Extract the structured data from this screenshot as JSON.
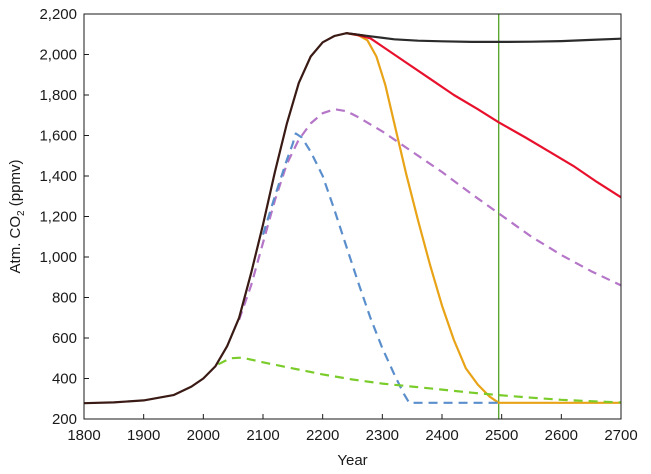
{
  "chart_data": {
    "type": "line",
    "title": "",
    "xlabel": "Year",
    "ylabel": {
      "pre": "Atm. CO",
      "sub": "2",
      "post": " (ppmv)"
    },
    "xlim": [
      1800,
      2700
    ],
    "ylim": [
      200,
      2200
    ],
    "xticks": [
      1800,
      1900,
      2000,
      2100,
      2200,
      2300,
      2400,
      2500,
      2600,
      2700
    ],
    "yticks": [
      200,
      400,
      600,
      800,
      1000,
      1200,
      1400,
      1600,
      1800,
      2000,
      2200
    ],
    "xtick_labels": [
      "1800",
      "1900",
      "2000",
      "2100",
      "2200",
      "2300",
      "2400",
      "2500",
      "2600",
      "2700"
    ],
    "ytick_labels": [
      "200",
      "400",
      "600",
      "800",
      "1,000",
      "1,200",
      "1,400",
      "1,600",
      "1,800",
      "2,000",
      "2,200"
    ],
    "grid": false,
    "vline": {
      "x": 2495,
      "color": "#5aa832"
    },
    "series": [
      {
        "color": "#e8a317",
        "dash": false,
        "points": [
          [
            2240,
            2105
          ],
          [
            2260,
            2095
          ],
          [
            2275,
            2070
          ],
          [
            2290,
            1990
          ],
          [
            2305,
            1850
          ],
          [
            2320,
            1660
          ],
          [
            2340,
            1410
          ],
          [
            2360,
            1180
          ],
          [
            2380,
            960
          ],
          [
            2400,
            760
          ],
          [
            2420,
            590
          ],
          [
            2440,
            450
          ],
          [
            2460,
            370
          ],
          [
            2480,
            310
          ],
          [
            2495,
            280
          ],
          [
            2700,
            280
          ]
        ]
      },
      {
        "color": "#e8112d",
        "dash": false,
        "points": [
          [
            2240,
            2105
          ],
          [
            2260,
            2095
          ],
          [
            2280,
            2080
          ],
          [
            2300,
            2040
          ],
          [
            2340,
            1960
          ],
          [
            2380,
            1880
          ],
          [
            2420,
            1800
          ],
          [
            2460,
            1730
          ],
          [
            2495,
            1665
          ],
          [
            2540,
            1590
          ],
          [
            2580,
            1520
          ],
          [
            2620,
            1450
          ],
          [
            2660,
            1370
          ],
          [
            2700,
            1295
          ]
        ]
      },
      {
        "color": "#2b2b2b",
        "dash": false,
        "points": [
          [
            2240,
            2105
          ],
          [
            2280,
            2090
          ],
          [
            2320,
            2075
          ],
          [
            2360,
            2068
          ],
          [
            2400,
            2065
          ],
          [
            2450,
            2062
          ],
          [
            2500,
            2062
          ],
          [
            2550,
            2063
          ],
          [
            2600,
            2066
          ],
          [
            2650,
            2072
          ],
          [
            2700,
            2078
          ]
        ]
      },
      {
        "color": "#b575c8",
        "dash": true,
        "points": [
          [
            2060,
            690
          ],
          [
            2080,
            860
          ],
          [
            2100,
            1070
          ],
          [
            2120,
            1280
          ],
          [
            2140,
            1460
          ],
          [
            2160,
            1580
          ],
          [
            2180,
            1660
          ],
          [
            2200,
            1710
          ],
          [
            2220,
            1730
          ],
          [
            2240,
            1720
          ],
          [
            2260,
            1690
          ],
          [
            2300,
            1620
          ],
          [
            2350,
            1520
          ],
          [
            2400,
            1420
          ],
          [
            2450,
            1310
          ],
          [
            2500,
            1205
          ],
          [
            2550,
            1100
          ],
          [
            2600,
            1010
          ],
          [
            2650,
            930
          ],
          [
            2700,
            860
          ]
        ]
      },
      {
        "color": "#5b8fcc",
        "dash": true,
        "points": [
          [
            2100,
            1110
          ],
          [
            2120,
            1300
          ],
          [
            2140,
            1480
          ],
          [
            2150,
            1560
          ],
          [
            2155,
            1610
          ],
          [
            2165,
            1590
          ],
          [
            2180,
            1520
          ],
          [
            2200,
            1400
          ],
          [
            2220,
            1230
          ],
          [
            2240,
            1050
          ],
          [
            2260,
            870
          ],
          [
            2280,
            700
          ],
          [
            2300,
            550
          ],
          [
            2320,
            420
          ],
          [
            2335,
            330
          ],
          [
            2345,
            280
          ],
          [
            2495,
            280
          ]
        ]
      },
      {
        "color": "#7acc2a",
        "dash": true,
        "points": [
          [
            2025,
            470
          ],
          [
            2045,
            500
          ],
          [
            2065,
            503
          ],
          [
            2100,
            480
          ],
          [
            2150,
            450
          ],
          [
            2200,
            420
          ],
          [
            2250,
            395
          ],
          [
            2300,
            375
          ],
          [
            2350,
            360
          ],
          [
            2400,
            345
          ],
          [
            2450,
            330
          ],
          [
            2495,
            318
          ],
          [
            2550,
            305
          ],
          [
            2600,
            295
          ],
          [
            2650,
            288
          ],
          [
            2700,
            282
          ]
        ]
      },
      {
        "color": "#3a1a14",
        "dash": false,
        "points": [
          [
            1800,
            278
          ],
          [
            1850,
            282
          ],
          [
            1900,
            292
          ],
          [
            1950,
            318
          ],
          [
            1980,
            360
          ],
          [
            2000,
            400
          ],
          [
            2020,
            460
          ],
          [
            2040,
            560
          ],
          [
            2060,
            700
          ],
          [
            2080,
            920
          ],
          [
            2100,
            1160
          ],
          [
            2120,
            1420
          ],
          [
            2140,
            1660
          ],
          [
            2160,
            1860
          ],
          [
            2180,
            1990
          ],
          [
            2200,
            2060
          ],
          [
            2220,
            2092
          ],
          [
            2240,
            2105
          ],
          [
            2255,
            2100
          ],
          [
            2270,
            2093
          ]
        ]
      }
    ]
  }
}
